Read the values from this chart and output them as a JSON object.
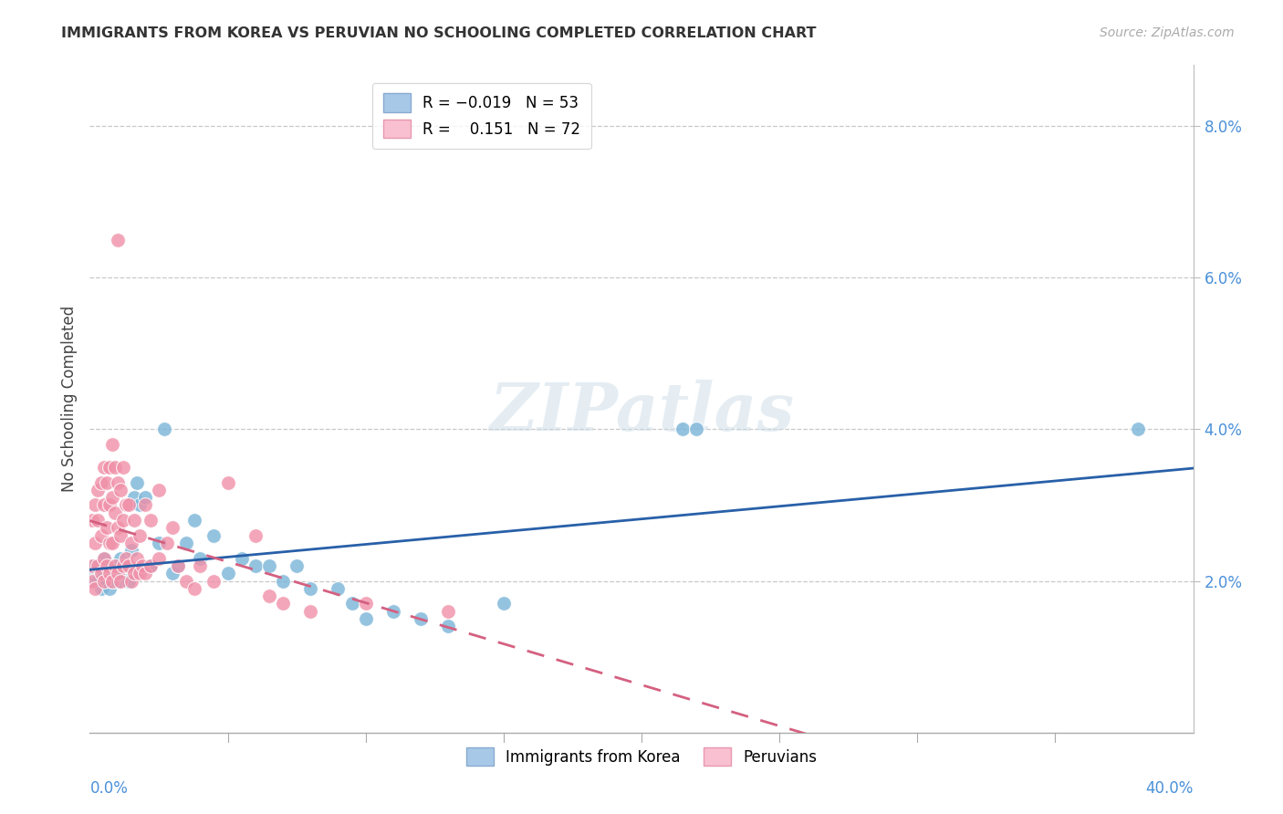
{
  "title": "IMMIGRANTS FROM KOREA VS PERUVIAN NO SCHOOLING COMPLETED CORRELATION CHART",
  "source": "Source: ZipAtlas.com",
  "ylabel": "No Schooling Completed",
  "korea_color": "#7ab4d8",
  "peru_color": "#f090a8",
  "korea_trend_color": "#2860a8",
  "peru_trend_color": "#d46080",
  "xlim": [
    0.0,
    0.4
  ],
  "ylim": [
    0.0,
    0.088
  ],
  "yticks": [
    0.02,
    0.04,
    0.06,
    0.08
  ],
  "ytick_labels": [
    "2.0%",
    "4.0%",
    "6.0%",
    "8.0%"
  ],
  "watermark": "ZIPatlas",
  "background_color": "#ffffff",
  "grid_color": "#c8c8c8",
  "korea_points": [
    [
      0.001,
      0.021
    ],
    [
      0.002,
      0.02
    ],
    [
      0.002,
      0.022
    ],
    [
      0.003,
      0.021
    ],
    [
      0.003,
      0.02
    ],
    [
      0.004,
      0.022
    ],
    [
      0.004,
      0.019
    ],
    [
      0.005,
      0.021
    ],
    [
      0.005,
      0.023
    ],
    [
      0.006,
      0.02
    ],
    [
      0.006,
      0.022
    ],
    [
      0.007,
      0.021
    ],
    [
      0.007,
      0.019
    ],
    [
      0.008,
      0.022
    ],
    [
      0.008,
      0.02
    ],
    [
      0.009,
      0.021
    ],
    [
      0.01,
      0.022
    ],
    [
      0.01,
      0.02
    ],
    [
      0.011,
      0.023
    ],
    [
      0.012,
      0.021
    ],
    [
      0.013,
      0.022
    ],
    [
      0.014,
      0.02
    ],
    [
      0.015,
      0.024
    ],
    [
      0.016,
      0.031
    ],
    [
      0.017,
      0.033
    ],
    [
      0.018,
      0.03
    ],
    [
      0.02,
      0.031
    ],
    [
      0.022,
      0.022
    ],
    [
      0.025,
      0.025
    ],
    [
      0.027,
      0.04
    ],
    [
      0.03,
      0.021
    ],
    [
      0.032,
      0.022
    ],
    [
      0.035,
      0.025
    ],
    [
      0.038,
      0.028
    ],
    [
      0.04,
      0.023
    ],
    [
      0.045,
      0.026
    ],
    [
      0.05,
      0.021
    ],
    [
      0.055,
      0.023
    ],
    [
      0.06,
      0.022
    ],
    [
      0.065,
      0.022
    ],
    [
      0.07,
      0.02
    ],
    [
      0.075,
      0.022
    ],
    [
      0.08,
      0.019
    ],
    [
      0.09,
      0.019
    ],
    [
      0.095,
      0.017
    ],
    [
      0.1,
      0.015
    ],
    [
      0.11,
      0.016
    ],
    [
      0.12,
      0.015
    ],
    [
      0.13,
      0.014
    ],
    [
      0.15,
      0.017
    ],
    [
      0.215,
      0.04
    ],
    [
      0.22,
      0.04
    ],
    [
      0.38,
      0.04
    ]
  ],
  "peru_points": [
    [
      0.001,
      0.02
    ],
    [
      0.001,
      0.022
    ],
    [
      0.001,
      0.028
    ],
    [
      0.002,
      0.019
    ],
    [
      0.002,
      0.025
    ],
    [
      0.002,
      0.03
    ],
    [
      0.003,
      0.022
    ],
    [
      0.003,
      0.028
    ],
    [
      0.003,
      0.032
    ],
    [
      0.004,
      0.021
    ],
    [
      0.004,
      0.026
    ],
    [
      0.004,
      0.033
    ],
    [
      0.005,
      0.02
    ],
    [
      0.005,
      0.023
    ],
    [
      0.005,
      0.03
    ],
    [
      0.005,
      0.035
    ],
    [
      0.006,
      0.022
    ],
    [
      0.006,
      0.027
    ],
    [
      0.006,
      0.033
    ],
    [
      0.007,
      0.021
    ],
    [
      0.007,
      0.025
    ],
    [
      0.007,
      0.03
    ],
    [
      0.007,
      0.035
    ],
    [
      0.008,
      0.02
    ],
    [
      0.008,
      0.025
    ],
    [
      0.008,
      0.031
    ],
    [
      0.008,
      0.038
    ],
    [
      0.009,
      0.022
    ],
    [
      0.009,
      0.029
    ],
    [
      0.009,
      0.035
    ],
    [
      0.01,
      0.021
    ],
    [
      0.01,
      0.027
    ],
    [
      0.01,
      0.033
    ],
    [
      0.01,
      0.065
    ],
    [
      0.011,
      0.02
    ],
    [
      0.011,
      0.026
    ],
    [
      0.011,
      0.032
    ],
    [
      0.012,
      0.022
    ],
    [
      0.012,
      0.028
    ],
    [
      0.012,
      0.035
    ],
    [
      0.013,
      0.023
    ],
    [
      0.013,
      0.03
    ],
    [
      0.014,
      0.022
    ],
    [
      0.014,
      0.03
    ],
    [
      0.015,
      0.02
    ],
    [
      0.015,
      0.025
    ],
    [
      0.016,
      0.021
    ],
    [
      0.016,
      0.028
    ],
    [
      0.017,
      0.023
    ],
    [
      0.018,
      0.021
    ],
    [
      0.018,
      0.026
    ],
    [
      0.019,
      0.022
    ],
    [
      0.02,
      0.021
    ],
    [
      0.02,
      0.03
    ],
    [
      0.022,
      0.022
    ],
    [
      0.022,
      0.028
    ],
    [
      0.025,
      0.023
    ],
    [
      0.025,
      0.032
    ],
    [
      0.028,
      0.025
    ],
    [
      0.03,
      0.027
    ],
    [
      0.032,
      0.022
    ],
    [
      0.035,
      0.02
    ],
    [
      0.038,
      0.019
    ],
    [
      0.04,
      0.022
    ],
    [
      0.045,
      0.02
    ],
    [
      0.05,
      0.033
    ],
    [
      0.06,
      0.026
    ],
    [
      0.065,
      0.018
    ],
    [
      0.07,
      0.017
    ],
    [
      0.08,
      0.016
    ],
    [
      0.1,
      0.017
    ],
    [
      0.13,
      0.016
    ]
  ]
}
